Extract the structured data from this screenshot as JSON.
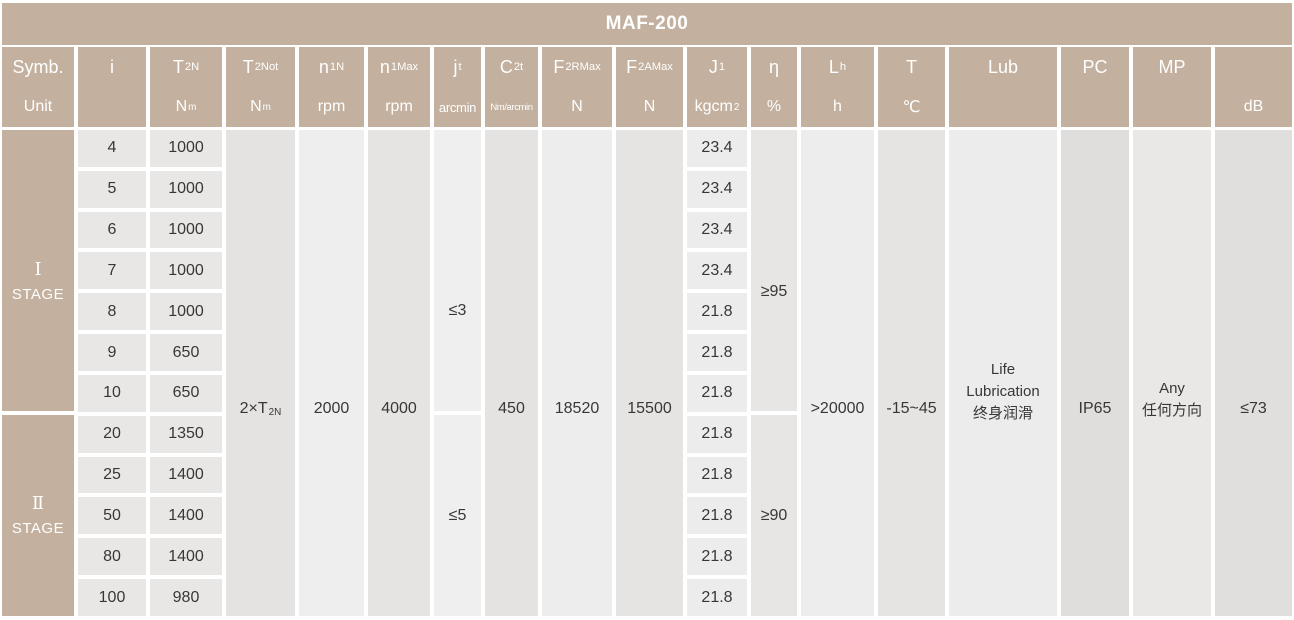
{
  "title": "MAF-200",
  "colors": {
    "accent_tan": "#c3b09e",
    "header_text": "#ffffff",
    "body_text": "#383736"
  },
  "header": {
    "cols": [
      {
        "sym": "Symb.",
        "sub": "",
        "unit": "Unit"
      },
      {
        "sym": "i",
        "sub": "",
        "unit": ""
      },
      {
        "sym": "T",
        "sub": "2N",
        "unit": "N",
        "usub": "m"
      },
      {
        "sym": "T",
        "sub": "2Not",
        "unit": "N",
        "usub": "m"
      },
      {
        "sym": "n",
        "sub": "1N",
        "unit": "rpm"
      },
      {
        "sym": "n",
        "sub": "1Max",
        "unit": "rpm"
      },
      {
        "sym": "j",
        "sub": "t",
        "unit": "arcmin"
      },
      {
        "sym": "C",
        "sub": "2t",
        "unit": "Nm/arcmin"
      },
      {
        "sym": "F",
        "sub": "2RMax",
        "unit": "N"
      },
      {
        "sym": "F",
        "sub": "2AMax",
        "unit": "N"
      },
      {
        "sym": "J",
        "sub": "1",
        "unit": "kgcm",
        "usup": "2"
      },
      {
        "sym": "η",
        "sub": "",
        "unit": "%"
      },
      {
        "sym": "L",
        "sub": "h",
        "unit": "h"
      },
      {
        "sym": "T",
        "sub": "",
        "unit": "℃"
      },
      {
        "sym": "Lub",
        "sub": "",
        "unit": ""
      },
      {
        "sym": "PC",
        "sub": "",
        "unit": ""
      },
      {
        "sym": "MP",
        "sub": "",
        "unit": ""
      },
      {
        "sym": "",
        "sub": "",
        "unit": "dB"
      }
    ]
  },
  "body": {
    "stages": [
      {
        "numeral": "Ⅰ",
        "label": "STAGE"
      },
      {
        "numeral": "Ⅱ",
        "label": "STAGE"
      }
    ],
    "rows": [
      {
        "i": "4",
        "t2n": "1000",
        "j1": "23.4"
      },
      {
        "i": "5",
        "t2n": "1000",
        "j1": "23.4"
      },
      {
        "i": "6",
        "t2n": "1000",
        "j1": "23.4"
      },
      {
        "i": "7",
        "t2n": "1000",
        "j1": "23.4"
      },
      {
        "i": "8",
        "t2n": "1000",
        "j1": "21.8"
      },
      {
        "i": "9",
        "t2n": "650",
        "j1": "21.8"
      },
      {
        "i": "10",
        "t2n": "650",
        "j1": "21.8"
      },
      {
        "i": "20",
        "t2n": "1350",
        "j1": "21.8"
      },
      {
        "i": "25",
        "t2n": "1400",
        "j1": "21.8"
      },
      {
        "i": "50",
        "t2n": "1400",
        "j1": "21.8"
      },
      {
        "i": "80",
        "t2n": "1400",
        "j1": "21.8"
      },
      {
        "i": "100",
        "t2n": "980",
        "j1": "21.8"
      }
    ],
    "merged": {
      "t2not": {
        "base": "2×T",
        "sub": "2N"
      },
      "n1n": "2000",
      "n1max": "4000",
      "jt": [
        "≤3",
        "≤5"
      ],
      "c2t": "450",
      "f2rmax": "18520",
      "f2amax": "15500",
      "eta": [
        "≥95",
        "≥90"
      ],
      "lh": ">20000",
      "t": "-15~45",
      "lub": [
        "Life",
        "Lubrication",
        "终身润滑"
      ],
      "pc": "IP65",
      "mp": [
        "Any",
        "任何方向"
      ],
      "db": "≤73"
    }
  }
}
